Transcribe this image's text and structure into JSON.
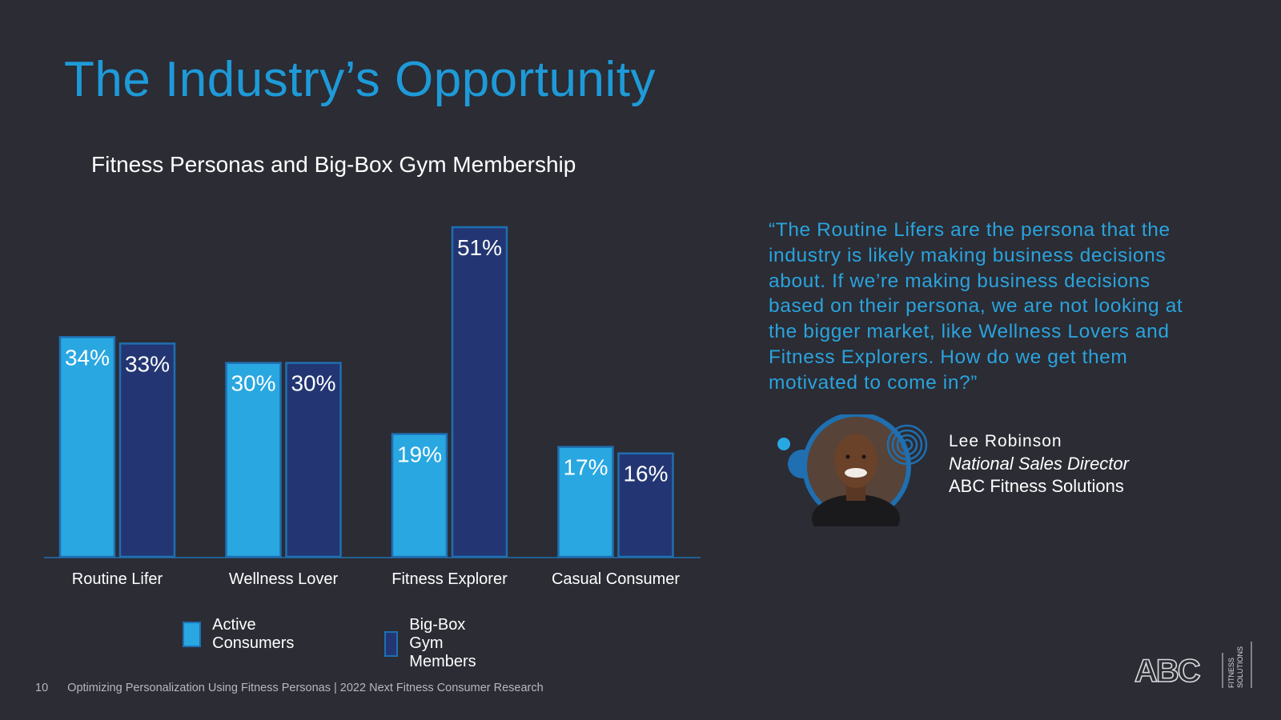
{
  "slide": {
    "title": "The Industry’s Opportunity",
    "page_number": "10",
    "footer_text": "Optimizing Personalization Using Fitness Personas |  2022 Next Fitness Consumer Research"
  },
  "quote": {
    "text": "“The Routine Lifers are the persona that the industry is likely making business decisions about. If we’re making business decisions based on their persona, we are not looking at the bigger market, like Wellness Lovers and Fitness Explorers. How do we get them motivated to come in?”",
    "name": "Lee Robinson",
    "role": "National Sales Director",
    "organization": "ABC Fitness Solutions"
  },
  "logo": {
    "wordmark": "ABC",
    "tagline_line1": "FITNESS",
    "tagline_line2": "SOLUTIONS"
  },
  "colors": {
    "background": "#2b2c34",
    "title": "#1e9ad8",
    "active_consumers": "#29a7e1",
    "big_box_members": "#233673",
    "bar_border": "#1f6fb1",
    "quote": "#2aa3dd"
  },
  "chart_data": {
    "type": "bar",
    "title": "Fitness Personas and Big-Box Gym Membership",
    "categories": [
      "Routine Lifer",
      "Wellness Lover",
      "Fitness Explorer",
      "Casual Consumer"
    ],
    "series": [
      {
        "name": "Active Consumers",
        "values": [
          34,
          30,
          19,
          17
        ],
        "labels": [
          "34%",
          "30%",
          "19%",
          "17%"
        ],
        "color": "#29a7e1"
      },
      {
        "name": "Big-Box Gym Members",
        "values": [
          33,
          30,
          51,
          16
        ],
        "labels": [
          "33%",
          "30%",
          "51%",
          "16%"
        ],
        "color": "#233673"
      }
    ],
    "ylim": [
      0,
      51
    ],
    "grid": false,
    "legend": "bottom",
    "xlabel": "",
    "ylabel": ""
  }
}
